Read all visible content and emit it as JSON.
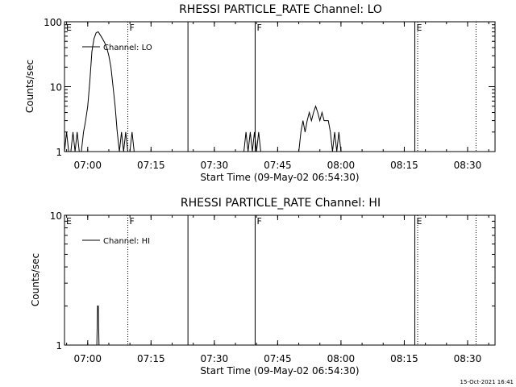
{
  "footer": {
    "timestamp": "15-Oct-2021 16:41"
  },
  "chart_data": [
    {
      "type": "line",
      "title": "RHESSI PARTICLE_RATE Channel: LO",
      "xlabel": "Start Time (09-May-02 06:54:30)",
      "ylabel": "Counts/sec",
      "yscale": "log",
      "ylim": [
        1,
        100
      ],
      "xlim": [
        "06:54:30",
        "08:36:30"
      ],
      "x_ticks": [
        "07:00",
        "07:15",
        "07:30",
        "07:45",
        "08:00",
        "08:15",
        "08:30"
      ],
      "y_ticks": [
        "1",
        "10",
        "100"
      ],
      "legend": {
        "label": "Channel: LO",
        "placement": "top-left"
      },
      "markers": [
        {
          "time": "06:54:30",
          "label": "E",
          "style": "none"
        },
        {
          "time": "07:09:30",
          "label": "F",
          "style": "dotted"
        },
        {
          "time": "07:23:45",
          "label": "",
          "style": "solid"
        },
        {
          "time": "07:39:40",
          "label": "F",
          "style": "solid"
        },
        {
          "time": "08:17:30",
          "label": "E",
          "style": "solid"
        },
        {
          "time": "08:18:10",
          "label": "",
          "style": "dotted"
        },
        {
          "time": "08:32:00",
          "label": "",
          "style": "dotted"
        }
      ],
      "series": [
        {
          "name": "Channel: LO",
          "x": [
            "06:54:30",
            "06:55:00",
            "06:55:30",
            "06:56:00",
            "06:56:30",
            "06:57:00",
            "06:57:30",
            "06:58:00",
            "06:58:30",
            "06:59:00",
            "06:59:30",
            "07:00:00",
            "07:00:30",
            "07:01:00",
            "07:01:30",
            "07:02:00",
            "07:02:30",
            "07:03:00",
            "07:03:30",
            "07:04:00",
            "07:04:30",
            "07:05:00",
            "07:05:30",
            "07:06:00",
            "07:06:30",
            "07:07:00",
            "07:07:30",
            "07:08:00",
            "07:08:30",
            "07:09:00",
            "07:09:30",
            "07:10:00",
            "07:10:30",
            "07:11:00",
            "07:37:00",
            "07:37:30",
            "07:38:00",
            "07:38:30",
            "07:39:00",
            "07:39:30",
            "07:40:00",
            "07:40:30",
            "07:41:00",
            "07:50:00",
            "07:50:30",
            "07:51:00",
            "07:51:30",
            "07:52:00",
            "07:52:30",
            "07:53:00",
            "07:53:30",
            "07:54:00",
            "07:54:30",
            "07:55:00",
            "07:55:30",
            "07:56:00",
            "07:56:30",
            "07:57:00",
            "07:57:30",
            "07:58:00",
            "07:58:30",
            "07:59:00",
            "07:59:30",
            "08:00:00"
          ],
          "y": [
            1,
            2,
            1,
            1,
            2,
            1,
            2,
            1,
            1,
            2,
            3,
            5,
            12,
            35,
            55,
            68,
            70,
            62,
            55,
            48,
            40,
            30,
            20,
            10,
            5,
            2,
            1,
            2,
            1,
            2,
            1,
            1,
            2,
            1,
            1,
            2,
            1,
            2,
            1,
            2,
            1,
            2,
            1,
            1,
            2,
            3,
            2,
            3,
            4,
            3,
            4,
            5,
            4,
            3,
            4,
            3,
            3,
            3,
            2,
            1,
            2,
            1,
            2,
            1
          ]
        }
      ]
    },
    {
      "type": "line",
      "title": "RHESSI PARTICLE_RATE Channel: HI",
      "xlabel": "Start Time (09-May-02 06:54:30)",
      "ylabel": "Counts/sec",
      "yscale": "log",
      "ylim": [
        1,
        10
      ],
      "xlim": [
        "06:54:30",
        "08:36:30"
      ],
      "x_ticks": [
        "07:00",
        "07:15",
        "07:30",
        "07:45",
        "08:00",
        "08:15",
        "08:30"
      ],
      "y_ticks": [
        "1",
        "10"
      ],
      "legend": {
        "label": "Channel: HI",
        "placement": "top-left"
      },
      "markers": [
        {
          "time": "06:54:30",
          "label": "E",
          "style": "none"
        },
        {
          "time": "07:09:30",
          "label": "F",
          "style": "dotted"
        },
        {
          "time": "07:23:45",
          "label": "",
          "style": "solid"
        },
        {
          "time": "07:39:40",
          "label": "F",
          "style": "solid"
        },
        {
          "time": "08:17:30",
          "label": "E",
          "style": "solid"
        },
        {
          "time": "08:18:10",
          "label": "",
          "style": "dotted"
        },
        {
          "time": "08:32:00",
          "label": "",
          "style": "dotted"
        }
      ],
      "series": [
        {
          "name": "Channel: HI",
          "x": [
            "07:02:00",
            "07:02:10",
            "07:02:20",
            "07:02:30",
            "07:02:40",
            "07:02:50"
          ],
          "y": [
            1,
            1,
            2,
            2,
            1,
            1
          ]
        }
      ]
    }
  ]
}
